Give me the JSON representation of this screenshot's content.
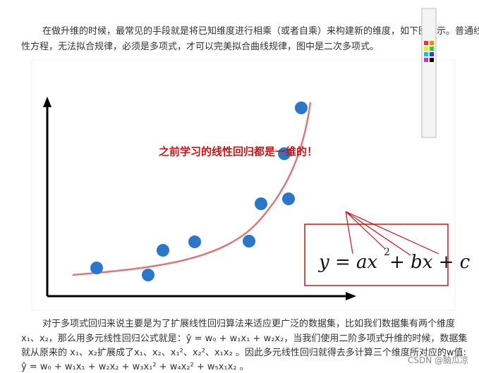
{
  "paragraph_1": [
    "在做升维的时候，最常见的手段就是将已知维度进行相乘（或者自乘）来构建新的维度，如下图所示。普通线",
    "性方程，无法拟合规律，必须是多项式，才可以完美拟合曲线规律，图中是二次多项式。"
  ],
  "figure": {
    "annotation": "之前学习的线性回归都是一维的！",
    "equation": [
      "y = ax",
      "2",
      " + bx + c"
    ]
  },
  "paragraph_2": [
    "对于多项式回归来说主要是为了扩展线性回归算法来适应更广泛的数据集，比如我们数据集有两个维度",
    "x₁、x₂，那么用多元线性回归公式就是：ŷ = w₀ + w₁x₁ + w₂x₂，当我们使用二阶多项式升维的时候，数据集",
    "就从原来的 x₁、x₂扩展成了x₁、x₂、x₁²、x₂²、x₁x₂ 。因此多元线性回归就得去多计算三个维度所对应的w值:",
    "ŷ = w₀ + w₁x₁ + w₂x₂ + w₃x₁² + w₄x₂² + w₅x₁x₂ 。"
  ],
  "watermark": "CSDN @脑瓜凉"
}
